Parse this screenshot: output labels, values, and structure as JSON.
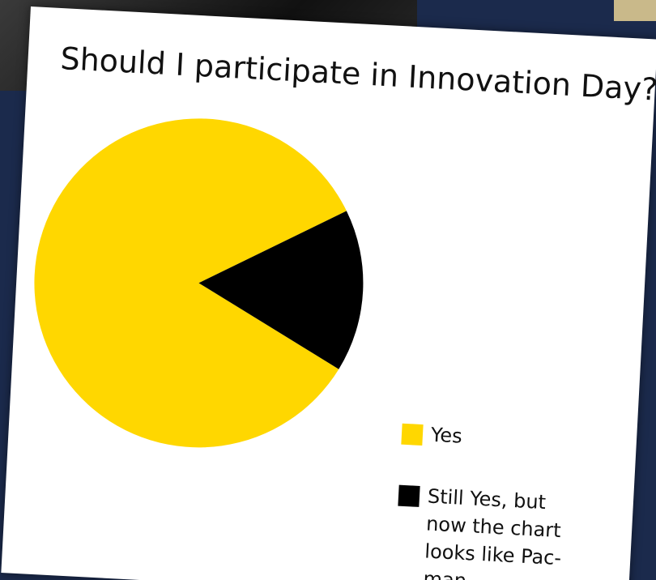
{
  "chart_data": {
    "type": "pie",
    "title": "Should I participate in Innovation Day?",
    "categories": [
      "Yes",
      "Still Yes, but now the chart looks like Pac-man"
    ],
    "values": [
      84,
      16
    ],
    "colors": [
      "#ffd700",
      "#000000"
    ]
  }
}
